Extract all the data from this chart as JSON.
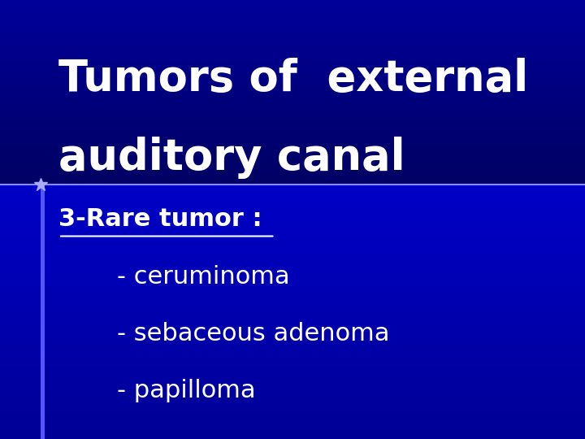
{
  "title_line1": "Tumors of  external",
  "title_line2": "auditory canal",
  "title_color": "#ffffff",
  "title_fontsize": 38,
  "title_font_weight": "bold",
  "divider_color": "#8888ff",
  "subtitle_text": "3-Rare tumor :",
  "subtitle_color": "#ffffff",
  "subtitle_fontsize": 22,
  "bullet_items": [
    "- ceruminoma",
    "- sebaceous adenoma",
    "- papilloma"
  ],
  "bullet_color": "#ffffff",
  "bullet_fontsize": 22,
  "title_area_color": "#00008B",
  "content_area_color": "#0000cc",
  "left_bar_color": "#5555ff",
  "star_color": "#aaaaff"
}
